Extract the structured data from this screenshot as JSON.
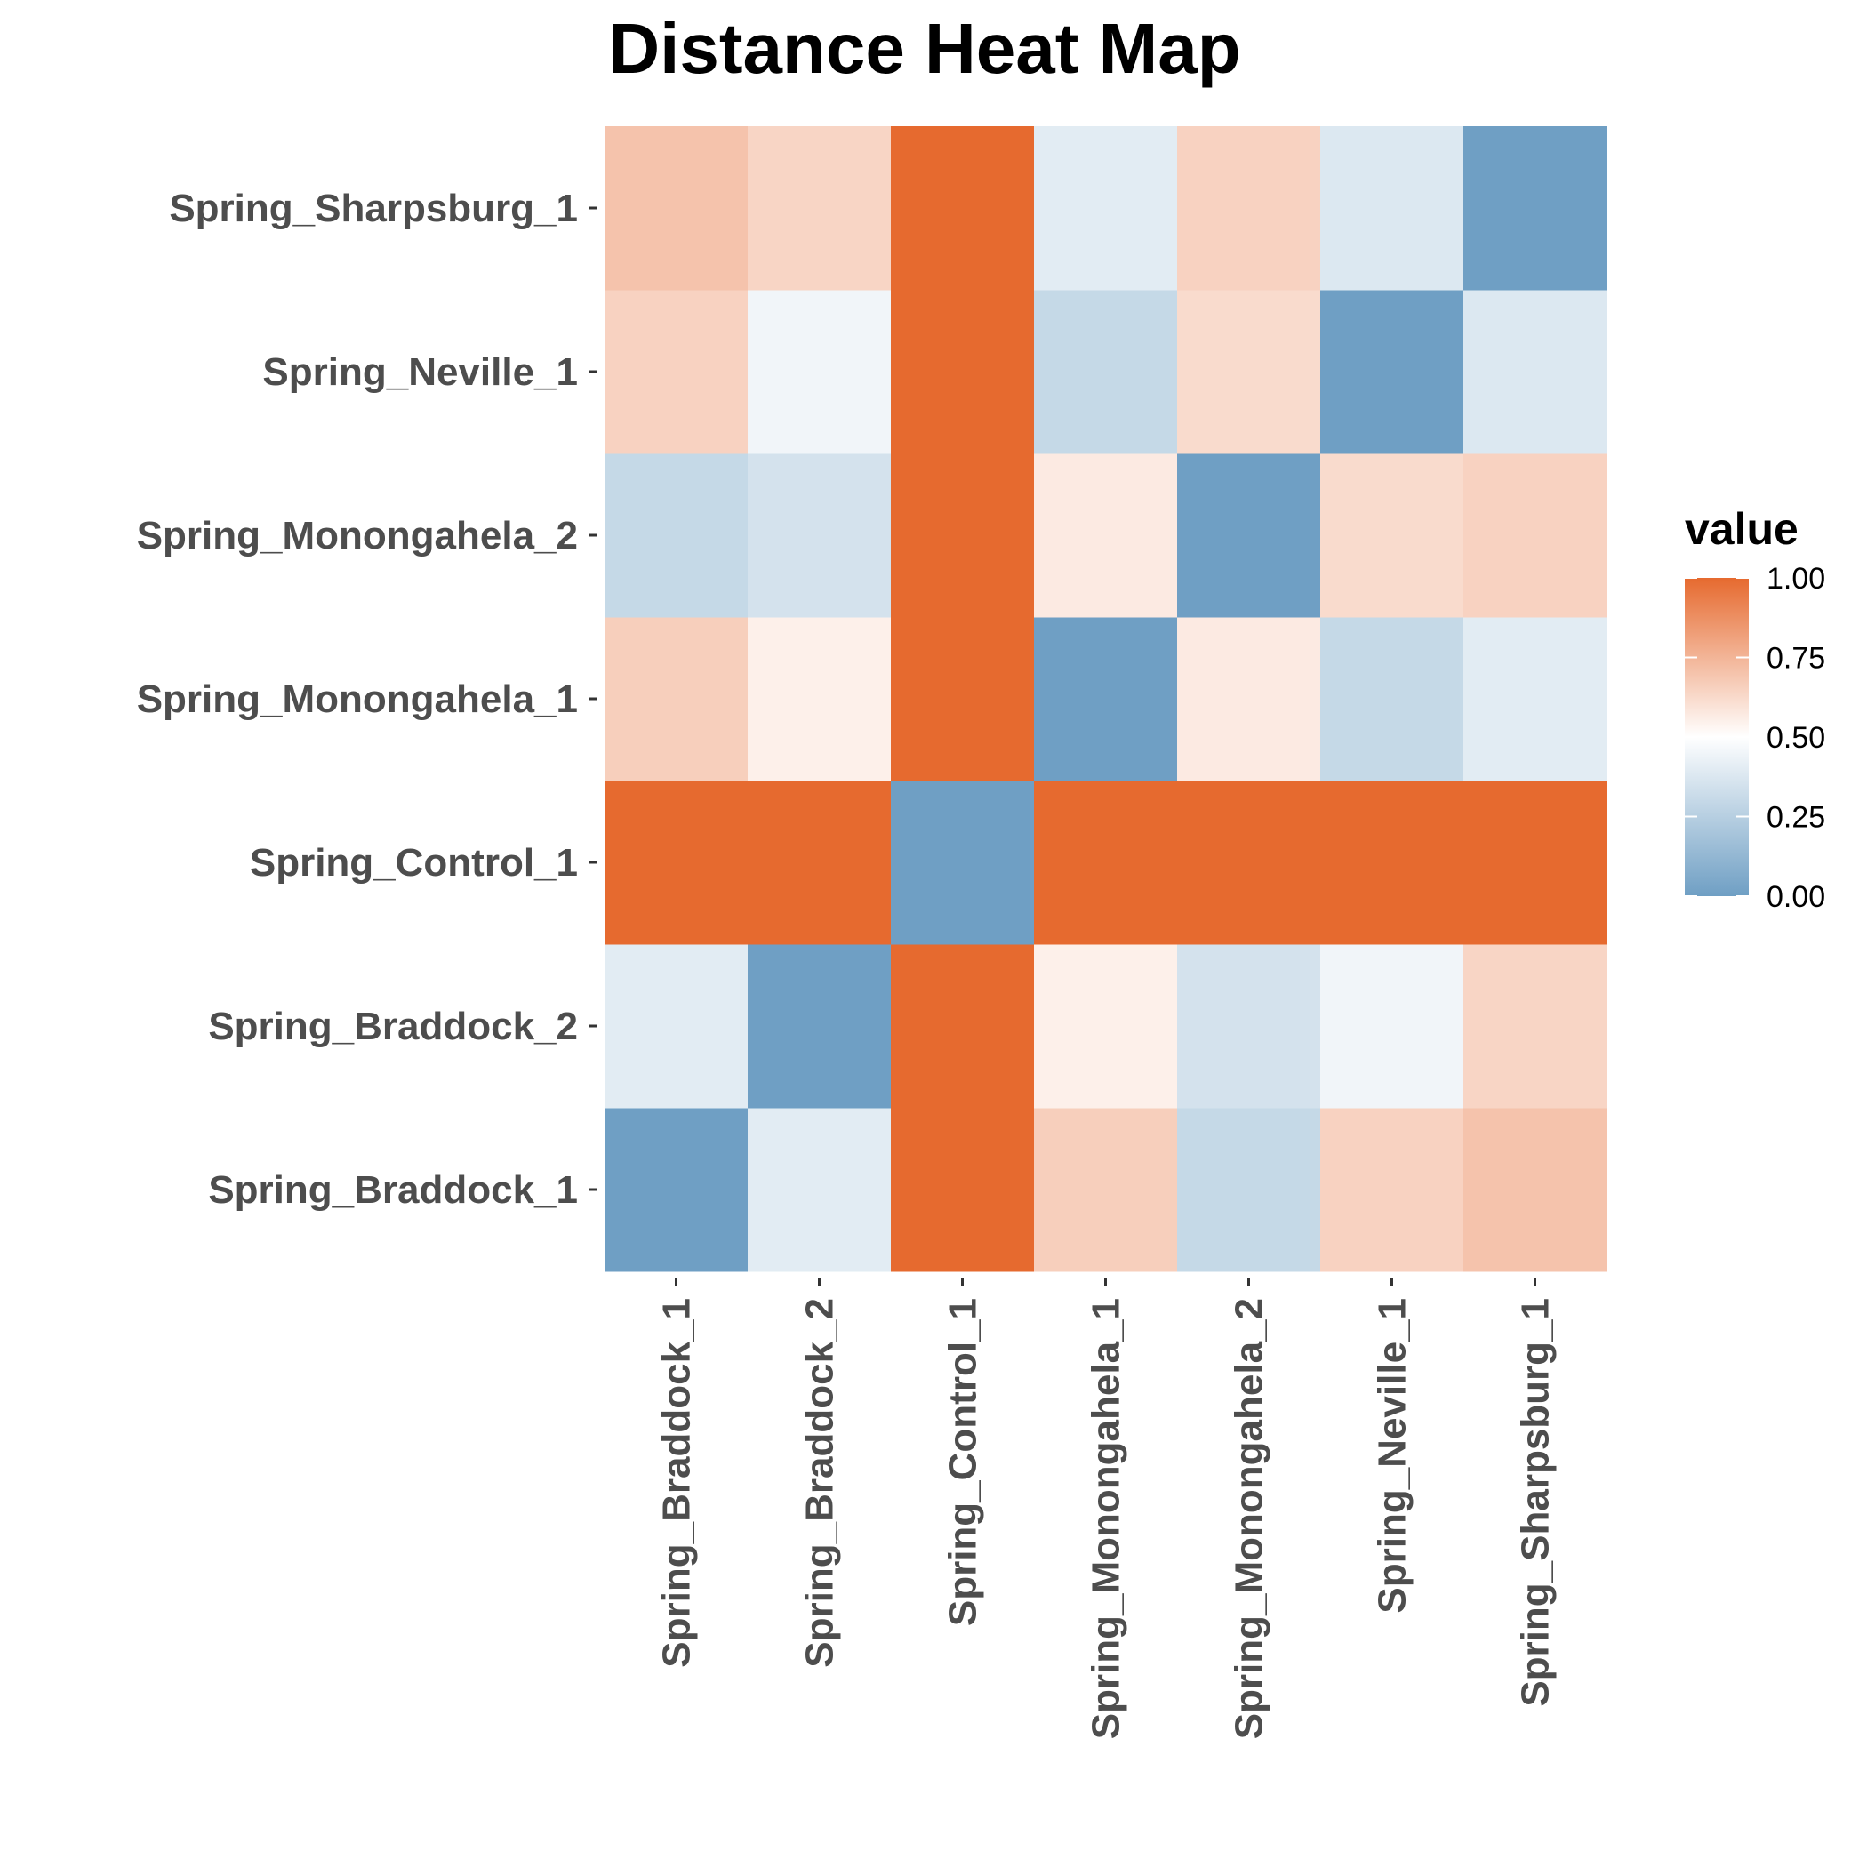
{
  "chart_data": {
    "type": "heatmap",
    "title": "Distance Heat Map",
    "x_categories": [
      "Spring_Braddock_1",
      "Spring_Braddock_2",
      "Spring_Control_1",
      "Spring_Monongahela_1",
      "Spring_Monongahela_2",
      "Spring_Neville_1",
      "Spring_Sharpsburg_1"
    ],
    "y_categories": [
      "Spring_Braddock_1",
      "Spring_Braddock_2",
      "Spring_Control_1",
      "Spring_Monongahela_1",
      "Spring_Monongahela_2",
      "Spring_Neville_1",
      "Spring_Sharpsburg_1"
    ],
    "values": [
      [
        0.0,
        0.4,
        1.0,
        0.66,
        0.3,
        0.65,
        0.7
      ],
      [
        0.4,
        0.0,
        1.0,
        0.55,
        0.35,
        0.45,
        0.64
      ],
      [
        1.0,
        1.0,
        0.0,
        1.0,
        1.0,
        1.0,
        1.0
      ],
      [
        0.66,
        0.55,
        1.0,
        0.0,
        0.57,
        0.3,
        0.4
      ],
      [
        0.3,
        0.35,
        1.0,
        0.57,
        0.0,
        0.62,
        0.65
      ],
      [
        0.65,
        0.45,
        1.0,
        0.3,
        0.62,
        0.0,
        0.38
      ],
      [
        0.7,
        0.64,
        1.0,
        0.4,
        0.65,
        0.38,
        0.0
      ]
    ],
    "xlabel": "",
    "ylabel": "",
    "color_scale": {
      "low": "#6f9fc4",
      "mid": "#ffffff",
      "high": "#e66a2f",
      "midpoint": 0.5,
      "limits": [
        0,
        1
      ]
    },
    "legend": {
      "title": "value",
      "ticks": [
        "0.00",
        "0.25",
        "0.50",
        "0.75",
        "1.00"
      ],
      "tick_values": [
        0,
        0.25,
        0.5,
        0.75,
        1
      ],
      "position": "right"
    }
  }
}
